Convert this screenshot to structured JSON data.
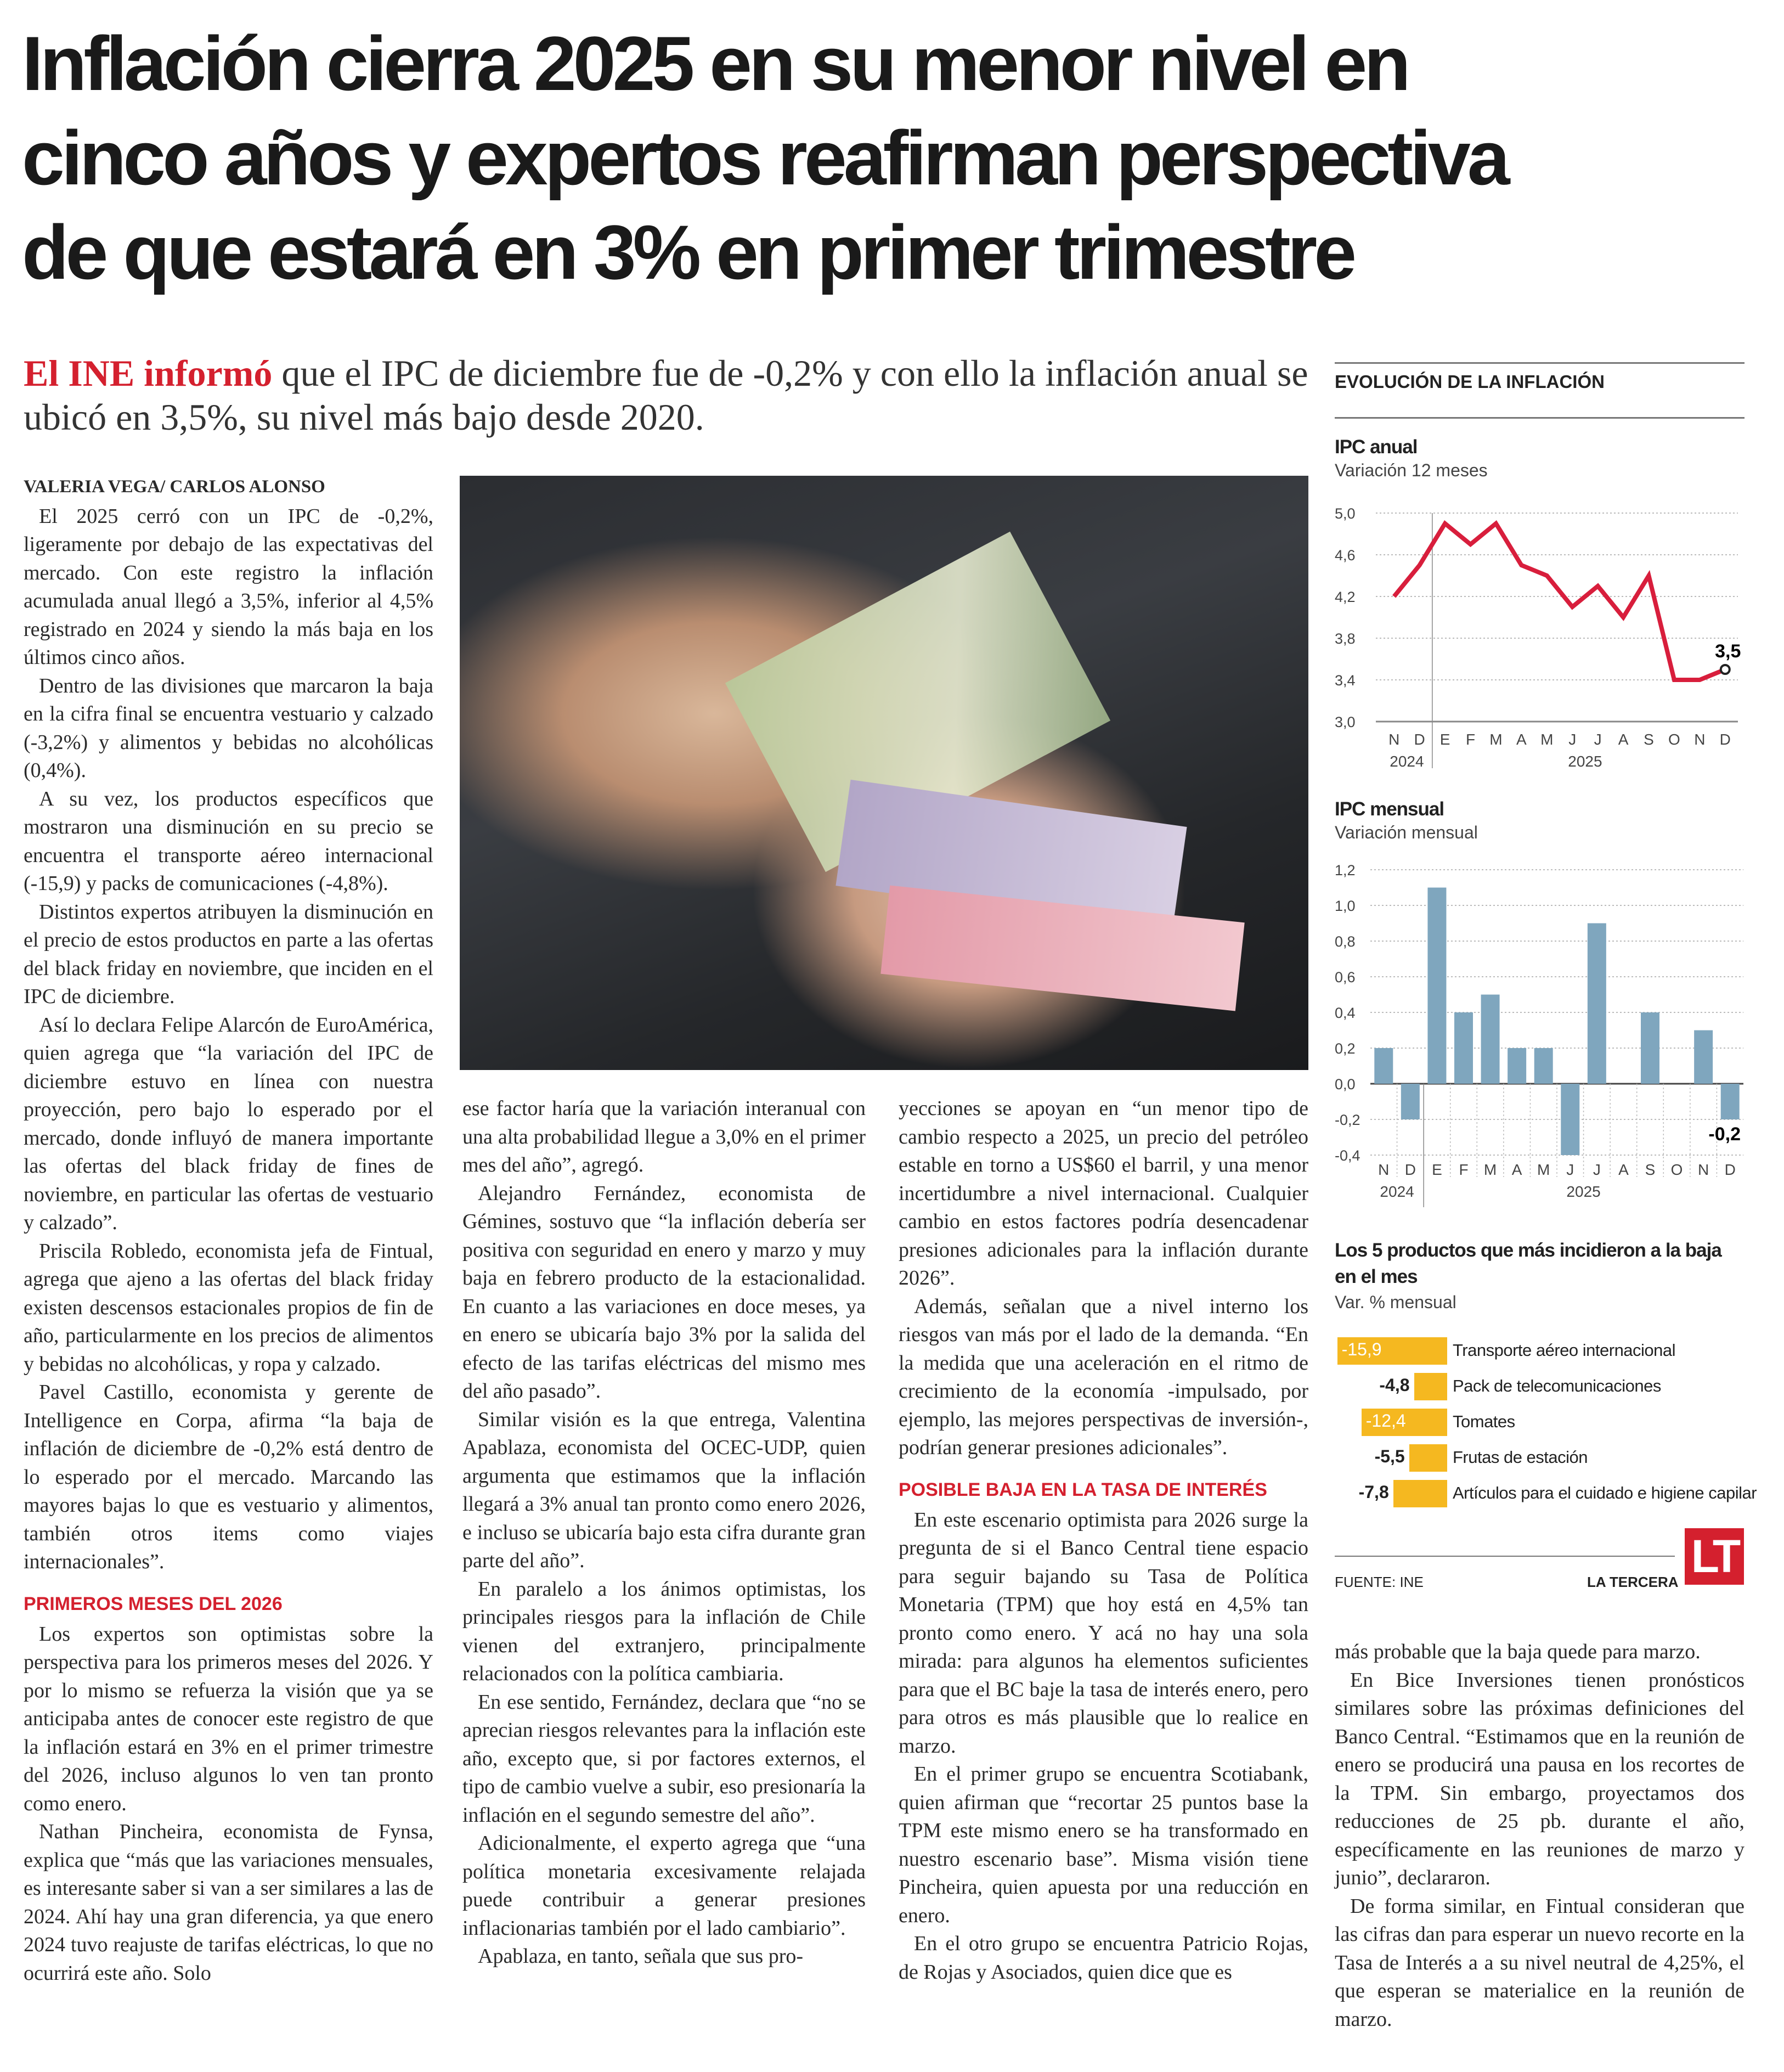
{
  "headline": [
    "Inflación cierra 2025 en su menor nivel en",
    "cinco años y expertos reafirman perspectiva",
    "de que estará en 3% en primer trimestre"
  ],
  "lead": {
    "kicker": "El INE informó",
    "text": " que el IPC de diciembre fue de -0,2% y con ello la inflación anual se ubicó en 3,5%, su nivel más bajo desde 2020."
  },
  "columns": [
    [
      {
        "t": "byline",
        "text": "Valeria Vega/ Carlos Alonso"
      },
      {
        "t": "p",
        "text": "El 2025 cerró con un IPC de -0,2%, ligeramente por debajo de las expectativas del mercado. Con este registro la inflación acumulada anual llegó a 3,5%, inferior al 4,5% registrado en 2024 y siendo la más baja en los últimos cinco años."
      },
      {
        "t": "p",
        "text": "Dentro de las divisiones que marcaron la baja en la cifra final se encuentra vestuario y calzado (-3,2%) y alimentos y bebidas no alcohólicas (0,4%)."
      },
      {
        "t": "p",
        "text": "A su vez, los productos específicos que mostraron una disminución en su precio se encuentra el transporte aéreo internacional (-15,9) y packs de comunicaciones (-4,8%)."
      },
      {
        "t": "p",
        "text": "Distintos expertos atribuyen la disminución en el precio de estos productos en parte a las ofertas del black friday en noviembre, que inciden en el IPC de diciembre."
      },
      {
        "t": "p",
        "text": "Así lo declara Felipe Alarcón de EuroAmérica, quien agrega que “la variación del IPC de diciembre estuvo en línea con nuestra proyección, pero bajo lo esperado por el mercado, donde influyó de manera importante las ofertas del black friday de fines de noviembre, en particular las ofertas de vestuario y calzado”."
      },
      {
        "t": "p",
        "text": "Priscila Robledo, economista jefa de Fintual, agrega que ajeno a las ofertas del black friday existen descensos estacionales propios de fin de año, particularmente en los precios de alimentos y bebidas no alcohólicas, y ropa y calzado."
      },
      {
        "t": "p",
        "text": "Pavel Castillo, economista y gerente de Intelligence en Corpa, afirma “la baja de inflación de diciembre de -0,2% está dentro de lo esperado por el mercado. Marcando las mayores bajas lo que es vestuario y alimentos, también otros items como viajes internacionales”."
      },
      {
        "t": "h",
        "text": "PRIMEROS MESES DEL 2026"
      },
      {
        "t": "p",
        "text": "Los expertos son optimistas sobre la perspectiva para los primeros meses del 2026. Y por lo mismo se refuerza la visión que ya se anticipaba antes de conocer este registro de que la inflación estará en 3% en el primer trimestre del 2026, incluso algunos lo ven tan pronto como enero."
      },
      {
        "t": "p",
        "text": "Nathan Pincheira, economista de Fynsa, explica que “más que las variaciones mensuales, es interesante saber si van a ser similares a las de 2024. Ahí hay una gran diferencia, ya que enero 2024 tuvo reajuste de tarifas eléctricas, lo que no ocurrirá este año. Solo"
      }
    ],
    [
      {
        "t": "c",
        "text": "ese factor haría que la variación interanual con una alta probabilidad llegue a 3,0% en el primer mes del año”, agregó."
      },
      {
        "t": "p",
        "text": "Alejandro Fernández, economista de Gémines, sostuvo que “la inflación debería ser positiva con seguridad en enero y marzo y muy baja en febrero producto de la estacionalidad. En cuanto a las variaciones en doce meses, ya en enero se ubicaría bajo 3% por la salida del efecto de las tarifas eléctricas del mismo mes del año pasado”."
      },
      {
        "t": "p",
        "text": "Similar visión es la que entrega, Valentina Apablaza, economista del OCEC-UDP, quien argumenta que estimamos que la inflación llegará a 3% anual tan pronto como enero 2026, e incluso se ubicaría bajo esta cifra durante gran parte del año”."
      },
      {
        "t": "p",
        "text": "En paralelo a los ánimos optimistas, los principales riesgos para la inflación de Chile vienen del extranjero, principalmente relacionados con la política cambiaria."
      },
      {
        "t": "p",
        "text": "En ese sentido, Fernández, declara que “no se aprecian riesgos relevantes para la inflación este año, excepto que, si por factores externos, el tipo de cambio vuelve a subir, eso presionaría la inflación en el segundo semestre del año”."
      },
      {
        "t": "p",
        "text": "Adicionalmente, el experto agrega que “una política monetaria excesivamente relajada puede contribuir a generar presiones inflacionarias también por el lado cambiario”."
      },
      {
        "t": "p",
        "text": "Apablaza, en tanto, señala que sus pro-"
      }
    ],
    [
      {
        "t": "c",
        "text": "yecciones se apoyan en “un menor tipo de cambio respecto a 2025, un precio del petróleo estable en torno a US$60 el barril, y una menor incertidumbre a nivel internacional. Cualquier cambio en estos factores podría desencadenar presiones adicionales para la inflación durante 2026”."
      },
      {
        "t": "p",
        "text": "Además, señalan que a nivel interno los riesgos van más por el lado de la demanda. “En la medida que una aceleración en el ritmo de crecimiento de la economía -impulsado, por ejemplo, las mejores perspectivas de inversión-, podrían generar presiones adicionales”."
      },
      {
        "t": "h",
        "text": "POSIBLE BAJA EN LA TASA DE INTERÉS"
      },
      {
        "t": "p",
        "text": "En este escenario optimista para 2026 surge la pregunta de si el Banco Central tiene espacio para seguir bajando su Tasa de Política Monetaria (TPM) que hoy está en 4,5% tan pronto como enero. Y acá no hay una sola mirada: para algunos ha elementos suficientes para que el BC baje la tasa de interés enero, pero para otros es más plausible que lo realice en marzo."
      },
      {
        "t": "p",
        "text": "En el primer grupo se encuentra Scotiabank, quien afirman que “recortar 25 puntos base la TPM este mismo enero se ha transformado en nuestro escenario base”. Misma visión tiene Pincheira, quien apuesta por una reducción en enero."
      },
      {
        "t": "p",
        "text": "En el otro grupo se encuentra Patricio Rojas, de Rojas y Asociados, quien dice que es"
      }
    ],
    [
      {
        "t": "c",
        "text": "más probable que la baja quede para marzo."
      },
      {
        "t": "p",
        "text": "En Bice Inversiones tienen pronósticos similares sobre las próximas definiciones del Banco Central. “Estimamos que en la reunión de enero se producirá una pausa en los recortes de la TPM. Sin embargo, proyectamos dos reducciones de 25 pb. durante el año, específicamente en las reuniones de marzo y junio”, declararon."
      },
      {
        "t": "p",
        "text": "De forma similar, en Fintual consideran que las cifras dan para esperar un nuevo recorte en la Tasa de Interés a a su nivel neutral de 4,25%, el que esperan se materialice en la reunión de marzo."
      }
    ]
  ],
  "sidebar": {
    "header": "EVOLUCIÓN DE LA INFLACIÓN",
    "source": "FUENTE: INE",
    "brand": "LA TERCERA",
    "logo": "LT"
  },
  "colors": {
    "accent": "#d4202e",
    "line": "#d81e3c",
    "bar": "#7fa6be",
    "product_bar": "#f5b820"
  },
  "chart_data": [
    {
      "type": "line",
      "title": "IPC anual",
      "subtitle": "Variación 12 meses",
      "categories": [
        "N",
        "D",
        "E",
        "F",
        "M",
        "A",
        "M",
        "J",
        "J",
        "A",
        "S",
        "O",
        "N",
        "D"
      ],
      "year_labels": [
        "2024",
        "2025"
      ],
      "values": [
        4.2,
        4.5,
        4.9,
        4.7,
        4.9,
        4.5,
        4.4,
        4.1,
        4.3,
        4.0,
        4.4,
        3.4,
        3.4,
        3.5
      ],
      "yticks": [
        "5,0",
        "4,6",
        "4,2",
        "3,8",
        "3,4",
        "3,0"
      ],
      "ylim": [
        3.0,
        5.0
      ],
      "annotation": "3,5",
      "grid": true
    },
    {
      "type": "bar",
      "title": "IPC mensual",
      "subtitle": "Variación mensual",
      "categories": [
        "N",
        "D",
        "E",
        "F",
        "M",
        "A",
        "M",
        "J",
        "J",
        "A",
        "S",
        "O",
        "N",
        "D"
      ],
      "year_labels": [
        "2024",
        "2025"
      ],
      "values": [
        0.2,
        -0.2,
        1.1,
        0.4,
        0.5,
        0.2,
        0.2,
        -0.4,
        0.9,
        0.0,
        0.4,
        0.0,
        0.3,
        -0.2
      ],
      "yticks": [
        "1,2",
        "1,0",
        "0,8",
        "0,6",
        "0,4",
        "0,2",
        "0,0",
        "-0,2",
        "-0,4"
      ],
      "ylim": [
        -0.4,
        1.2
      ],
      "annotation": "-0,2",
      "grid": true
    },
    {
      "type": "bar",
      "orientation": "horizontal",
      "title": "Los 5 productos que más incidieron a la baja en el mes",
      "subtitle": "Var. % mensual",
      "categories": [
        "Transporte aéreo internacional",
        "Pack de telecomunicaciones",
        "Tomates",
        "Frutas de estación",
        "Artículos para el cuidado e higiene capilar"
      ],
      "values": [
        -15.9,
        -4.8,
        -12.4,
        -5.5,
        -7.8
      ],
      "labels": [
        "-15,9",
        "-4,8",
        "-12,4",
        "-5,5",
        "-7,8"
      ]
    }
  ]
}
